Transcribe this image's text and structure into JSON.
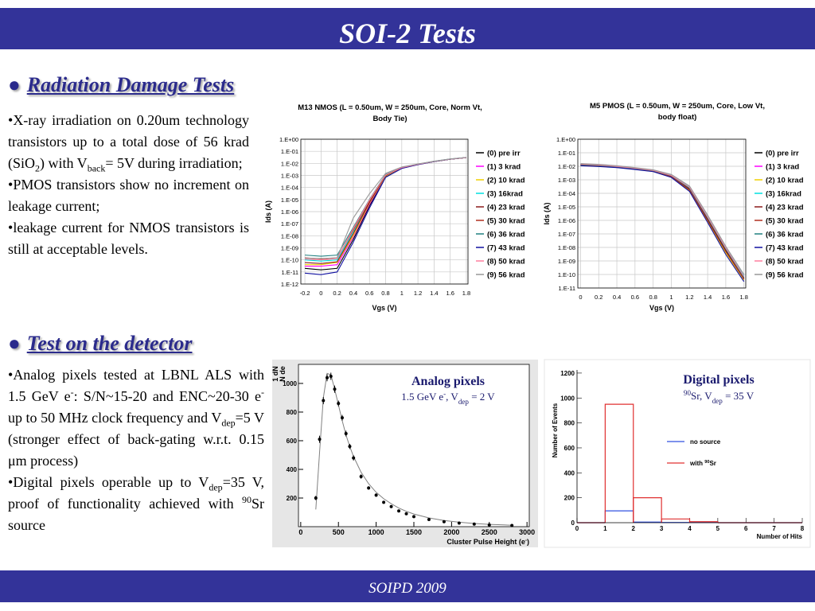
{
  "header": {
    "title": "SOI-2 Tests"
  },
  "footer": {
    "text": "SOIPD 2009"
  },
  "sections": [
    {
      "marker": "●",
      "heading": "Radiation Damage Tests",
      "bullet": "•",
      "bullets": [
        [
          {
            "t": "X-ray irradiation on 0.20um technology transistors up to a total dose of 56 krad (SiO"
          },
          {
            "t": "2",
            "s": "sub"
          },
          {
            "t": ") with V"
          },
          {
            "t": "back",
            "s": "sub"
          },
          {
            "t": "= 5V during irradiation;"
          }
        ],
        [
          {
            "t": "PMOS transistors show no increment on leakage current;"
          }
        ],
        [
          {
            "t": "leakage current for NMOS transistors is still at acceptable levels."
          }
        ]
      ]
    },
    {
      "marker": "●",
      "heading": "Test on the detector",
      "bullet": "•",
      "bullets": [
        [
          {
            "t": "Analog pixels tested at LBNL ALS with 1.5 GeV e"
          },
          {
            "t": "-",
            "s": "sup"
          },
          {
            "t": ": S/N~15-20 and ENC~20-30 e"
          },
          {
            "t": "-",
            "s": "sup"
          },
          {
            "t": " up to 50 MHz clock frequency and V"
          },
          {
            "t": "dep",
            "s": "sub"
          },
          {
            "t": "=5 V (stronger effect of back-gating w.r.t. 0.15 μm process)"
          }
        ],
        [
          {
            "t": "Digital pixels operable up to V"
          },
          {
            "t": "dep",
            "s": "sub"
          },
          {
            "t": "=35 V, proof of functionality achieved with "
          },
          {
            "t": "90",
            "s": "sup"
          },
          {
            "t": "Sr source"
          }
        ]
      ]
    }
  ],
  "chart_data": [
    {
      "type": "line",
      "title": [
        "M13  NMOS (L = 0.50um, W = 250um, Core, Norm Vt,",
        "Body Tie)"
      ],
      "x_label": "Vgs (V)",
      "y_label": "Ids (A)",
      "ylog": true,
      "grid": true,
      "legend": "right",
      "x": [
        -0.2,
        0,
        0.2,
        0.4,
        0.6,
        0.8,
        1,
        1.2,
        1.4,
        1.6,
        1.8
      ],
      "xlim": [
        -0.25,
        1.82
      ],
      "xticks": [
        -0.2,
        0,
        0.2,
        0.4,
        0.6,
        0.8,
        1,
        1.2,
        1.4,
        1.6,
        1.8
      ],
      "ylim": [
        1e-12,
        1
      ],
      "yticks": [
        {
          "value": 1,
          "label": "1.E+00"
        },
        {
          "value": 0.1,
          "label": "1.E-01"
        },
        {
          "value": 0.01,
          "label": "1.E-02"
        },
        {
          "value": 0.001,
          "label": "1.E-03"
        },
        {
          "value": 0.0001,
          "label": "1.E-04"
        },
        {
          "value": 1e-05,
          "label": "1.E-05"
        },
        {
          "value": 1e-06,
          "label": "1.E-06"
        },
        {
          "value": 1e-07,
          "label": "1.E-07"
        },
        {
          "value": 1e-08,
          "label": "1.E-08"
        },
        {
          "value": 1e-09,
          "label": "1.E-09"
        },
        {
          "value": 1e-10,
          "label": "1.E-10"
        },
        {
          "value": 1e-11,
          "label": "1.E-11"
        },
        {
          "value": 1e-12,
          "label": "1.E-12"
        }
      ],
      "series": [
        {
          "name": "(0) pre irr",
          "color": "#000000",
          "values": [
            2e-11,
            1.5e-11,
            2e-11,
            5e-09,
            3e-06,
            0.0008,
            0.004,
            0.008,
            0.014,
            0.022,
            0.03
          ]
        },
        {
          "name": "(1) 3 krad",
          "color": "#ff00ff",
          "values": [
            3e-11,
            3e-11,
            4e-11,
            8e-09,
            4e-06,
            0.0009,
            0.004,
            0.008,
            0.014,
            0.022,
            0.03
          ]
        },
        {
          "name": "(2) 10 krad",
          "color": "#f0d000",
          "values": [
            4e-11,
            4e-11,
            6e-11,
            1e-08,
            5e-06,
            0.0009,
            0.004,
            0.008,
            0.014,
            0.022,
            0.03
          ]
        },
        {
          "name": "(3) 16krad",
          "color": "#00e0e0",
          "values": [
            1e-10,
            8e-11,
            1e-10,
            2e-08,
            6e-06,
            0.001,
            0.0042,
            0.0082,
            0.014,
            0.022,
            0.03
          ]
        },
        {
          "name": "(4) 23 krad",
          "color": "#8b1a1a",
          "values": [
            6e-11,
            5e-11,
            7e-11,
            1.5e-08,
            6e-06,
            0.001,
            0.0042,
            0.0082,
            0.014,
            0.022,
            0.03
          ]
        },
        {
          "name": "(5) 30 krad",
          "color": "#b03020",
          "values": [
            1.5e-10,
            1.2e-10,
            1.5e-10,
            3e-08,
            8e-06,
            0.0011,
            0.0044,
            0.0084,
            0.0145,
            0.022,
            0.03
          ]
        },
        {
          "name": "(6) 36 krad",
          "color": "#208080",
          "values": [
            2.5e-10,
            2e-10,
            2.5e-10,
            5e-08,
            1e-05,
            0.0012,
            0.0045,
            0.0085,
            0.015,
            0.023,
            0.031
          ]
        },
        {
          "name": "(7) 43 krad",
          "color": "#1010a0",
          "values": [
            8e-12,
            6e-12,
            1e-11,
            3e-09,
            2e-06,
            0.0007,
            0.0038,
            0.0078,
            0.014,
            0.022,
            0.03
          ]
        },
        {
          "name": "(8) 50 krad",
          "color": "#ff7f9f",
          "values": [
            1.2e-10,
            1e-10,
            1.3e-10,
            4e-08,
            9e-06,
            0.0011,
            0.0044,
            0.0084,
            0.0145,
            0.0225,
            0.03
          ]
        },
        {
          "name": "(9) 56 krad",
          "color": "#999999",
          "values": [
            1.4e-10,
            1.3e-10,
            1.5e-10,
            3e-07,
            3e-05,
            0.0015,
            0.005,
            0.009,
            0.015,
            0.023,
            0.031
          ]
        }
      ]
    },
    {
      "type": "line",
      "title": [
        "M5 PMOS (L = 0.50um, W = 250um, Core, Low Vt,",
        "body float)"
      ],
      "x_label": "Vgs (V)",
      "y_label": "Ids (A)",
      "ylog": true,
      "grid": true,
      "legend": "right",
      "x": [
        0,
        0.2,
        0.4,
        0.6,
        0.8,
        1,
        1.2,
        1.4,
        1.6,
        1.8
      ],
      "xlim": [
        -0.03,
        1.82
      ],
      "xticks": [
        0,
        0.2,
        0.4,
        0.6,
        0.8,
        1,
        1.2,
        1.4,
        1.6,
        1.8
      ],
      "ylim": [
        1e-11,
        1
      ],
      "yticks": [
        {
          "value": 1,
          "label": "1.E+00"
        },
        {
          "value": 0.1,
          "label": "1.E-01"
        },
        {
          "value": 0.01,
          "label": "1.E-02"
        },
        {
          "value": 0.001,
          "label": "1.E-03"
        },
        {
          "value": 0.0001,
          "label": "1.E-04"
        },
        {
          "value": 1e-05,
          "label": "1.E-05"
        },
        {
          "value": 1e-06,
          "label": "1.E-06"
        },
        {
          "value": 1e-07,
          "label": "1.E-07"
        },
        {
          "value": 1e-08,
          "label": "1.E-08"
        },
        {
          "value": 1e-09,
          "label": "1.E-09"
        },
        {
          "value": 1e-10,
          "label": "1.E-10"
        },
        {
          "value": 1e-11,
          "label": "1.E-11"
        }
      ],
      "series": [
        {
          "name": "(0) pre irr",
          "color": "#000000",
          "values": [
            0.013,
            0.011,
            0.009,
            0.0065,
            0.0045,
            0.0018,
            0.0002,
            1.2e-06,
            6e-09,
            5e-11
          ]
        },
        {
          "name": "(1) 3 krad",
          "color": "#ff00ff",
          "values": [
            0.014,
            0.012,
            0.0095,
            0.007,
            0.0048,
            0.002,
            0.00025,
            1.6e-06,
            8e-09,
            6e-11
          ]
        },
        {
          "name": "(2) 10 krad",
          "color": "#f0d000",
          "values": [
            0.012,
            0.01,
            0.0085,
            0.006,
            0.0042,
            0.0016,
            0.00016,
            9e-07,
            4e-09,
            4e-11
          ]
        },
        {
          "name": "(3) 16krad",
          "color": "#00e0e0",
          "values": [
            0.015,
            0.013,
            0.01,
            0.0075,
            0.005,
            0.0022,
            0.0003,
            2e-06,
            1e-08,
            8e-11
          ]
        },
        {
          "name": "(4) 23 krad",
          "color": "#8b1a1a",
          "values": [
            0.013,
            0.011,
            0.009,
            0.0065,
            0.0046,
            0.0019,
            0.00022,
            1.4e-06,
            7e-09,
            5e-11
          ]
        },
        {
          "name": "(5) 30 krad",
          "color": "#b03020",
          "values": [
            0.0125,
            0.0105,
            0.0088,
            0.0063,
            0.0044,
            0.0017,
            0.00018,
            1e-06,
            5e-09,
            4.5e-11
          ]
        },
        {
          "name": "(6) 36 krad",
          "color": "#208080",
          "values": [
            0.0135,
            0.0115,
            0.0092,
            0.0067,
            0.0047,
            0.002,
            0.00024,
            1.5e-06,
            7.5e-09,
            6e-11
          ]
        },
        {
          "name": "(7) 43 krad",
          "color": "#1010a0",
          "values": [
            0.011,
            0.0095,
            0.008,
            0.0058,
            0.004,
            0.0015,
            0.00014,
            7e-07,
            3e-09,
            3e-11
          ]
        },
        {
          "name": "(8) 50 krad",
          "color": "#ff7f9f",
          "values": [
            0.0145,
            0.0125,
            0.0098,
            0.0072,
            0.0049,
            0.0021,
            0.00028,
            1.8e-06,
            9e-09,
            7e-11
          ]
        },
        {
          "name": "(9) 56 krad",
          "color": "#999999",
          "values": [
            0.016,
            0.014,
            0.011,
            0.008,
            0.0055,
            0.0025,
            0.00035,
            2.5e-06,
            1.2e-08,
            1e-10
          ]
        }
      ]
    },
    {
      "type": "scatter",
      "title": "Analog pixels",
      "subtitle": [
        {
          "t": "1.5 GeV e"
        },
        {
          "t": "-",
          "s": "sup"
        },
        {
          "t": ", V"
        },
        {
          "t": "dep",
          "s": "sub"
        },
        {
          "t": " = 2 V"
        }
      ],
      "x_label": [
        {
          "t": "Cluster Pulse Height (e"
        },
        {
          "t": "-",
          "s": "sup"
        },
        {
          "t": ")"
        }
      ],
      "y_label": [
        "1 dN",
        "N de"
      ],
      "color": "#000000",
      "fit_color": "#808080",
      "x": [
        200,
        250,
        300,
        350,
        400,
        450,
        500,
        550,
        600,
        650,
        700,
        800,
        900,
        1000,
        1100,
        1200,
        1300,
        1400,
        1500,
        1700,
        1900,
        2100,
        2300,
        2500,
        2800
      ],
      "values": [
        200,
        610,
        880,
        1040,
        1050,
        960,
        860,
        760,
        650,
        560,
        480,
        350,
        270,
        220,
        170,
        140,
        110,
        90,
        70,
        50,
        35,
        25,
        18,
        12,
        8
      ],
      "errors": [
        15,
        25,
        25,
        25,
        25,
        25,
        20,
        20,
        20,
        18,
        18,
        15,
        12,
        12,
        10,
        10,
        8,
        8,
        7,
        6,
        5,
        4,
        4,
        3,
        3
      ],
      "fit_values": [
        120,
        520,
        900,
        1070,
        1060,
        960,
        850,
        740,
        640,
        560,
        490,
        380,
        300,
        240,
        195,
        160,
        130,
        107,
        88,
        61,
        43,
        31,
        22,
        16,
        10
      ],
      "xlim": [
        -30,
        3030
      ],
      "xticks": [
        0,
        500,
        1000,
        1500,
        2000,
        2500,
        3000
      ],
      "ylim": [
        0,
        1133
      ],
      "yticks": [
        200,
        400,
        600,
        800,
        1000
      ]
    },
    {
      "type": "histogram",
      "title": "Digital pixels",
      "subtitle": [
        {
          "t": "90",
          "s": "sup"
        },
        {
          "t": "Sr, V"
        },
        {
          "t": "dep",
          "s": "sub"
        },
        {
          "t": " = 35 V"
        }
      ],
      "x_label": "Number of Hits",
      "y_label": "Number of Events",
      "bins": [
        0,
        1,
        2,
        3,
        4,
        5,
        6,
        7,
        8
      ],
      "xlim": [
        0,
        8
      ],
      "xticks": [
        0,
        1,
        2,
        3,
        4,
        5,
        6,
        7,
        8
      ],
      "ylim": [
        0,
        1225
      ],
      "yticks": [
        0,
        200,
        400,
        600,
        800,
        1000,
        1200
      ],
      "series": [
        {
          "name": [
            {
              "t": "no source"
            }
          ],
          "color": "#3050e0",
          "values": [
            0,
            95,
            5,
            2,
            2,
            0,
            0,
            0
          ]
        },
        {
          "name": [
            {
              "t": "with "
            },
            {
              "t": "90",
              "s": "sup"
            },
            {
              "t": "Sr"
            }
          ],
          "color": "#e03030",
          "values": [
            0,
            950,
            200,
            30,
            8,
            0,
            0,
            0
          ]
        }
      ]
    }
  ]
}
